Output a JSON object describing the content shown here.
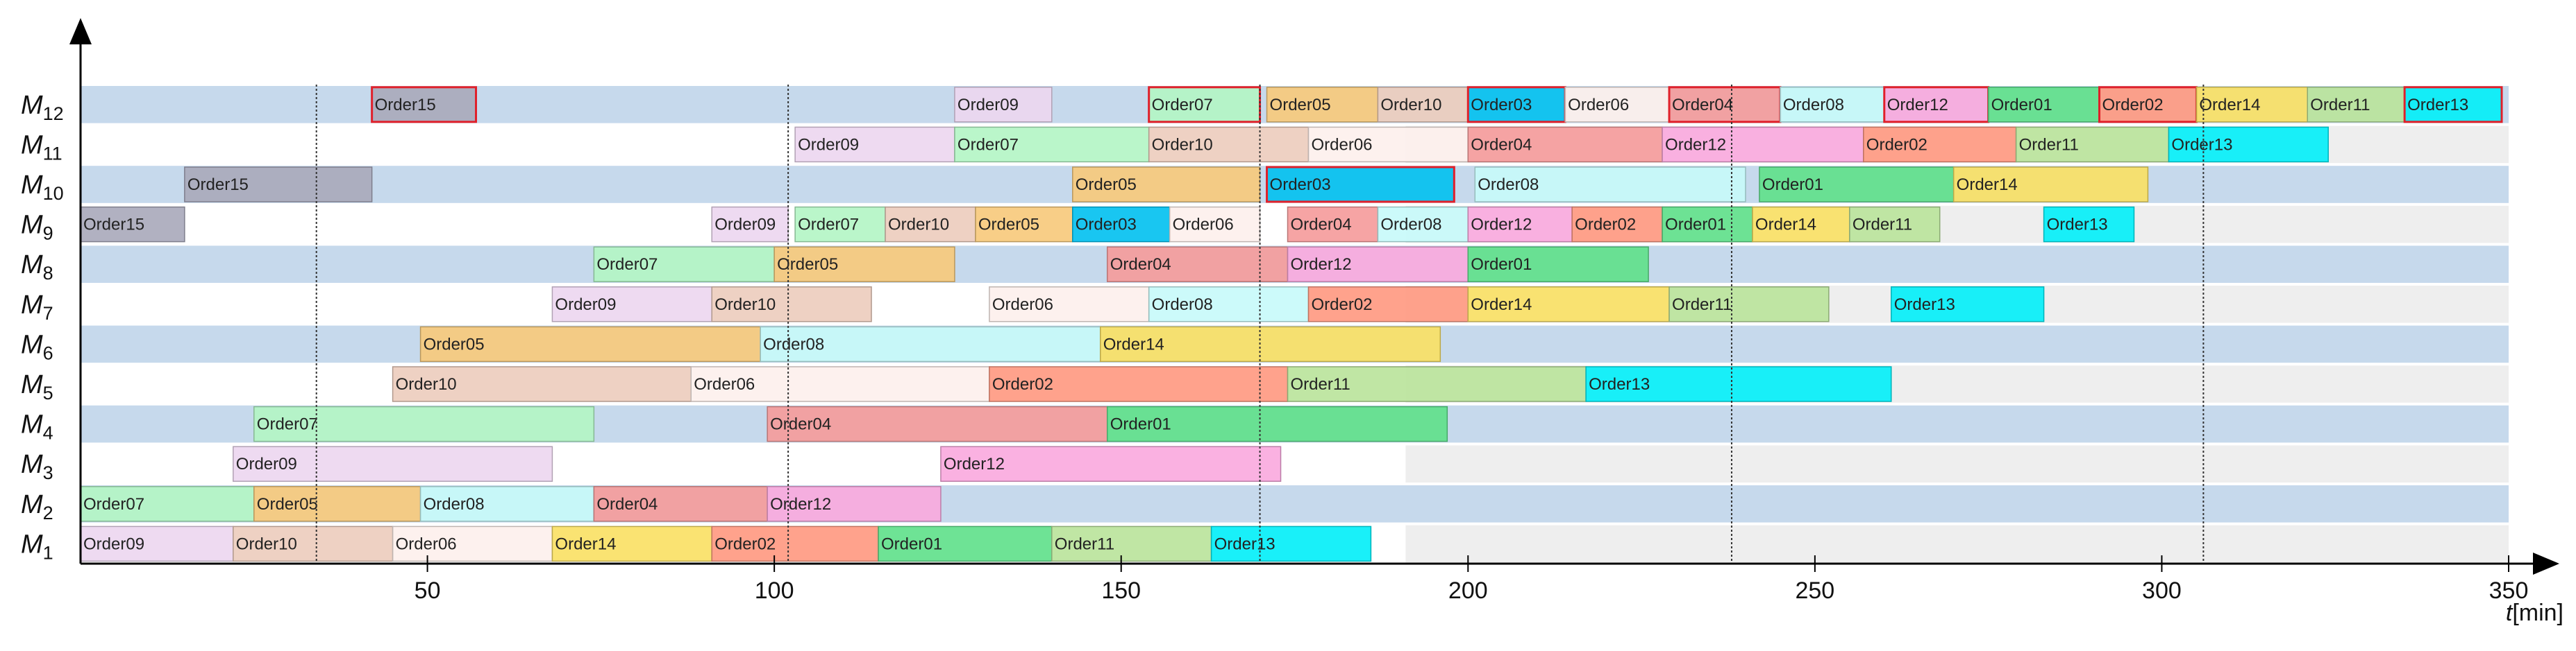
{
  "chart_data": {
    "type": "gantt",
    "x_axis": {
      "label_var": "t",
      "label_unit": "[min]",
      "min": 0,
      "max": 350,
      "ticks": [
        50,
        100,
        150,
        200,
        250,
        300,
        350
      ]
    },
    "machines": [
      {
        "base": "M",
        "sub": "12"
      },
      {
        "base": "M",
        "sub": "11"
      },
      {
        "base": "M",
        "sub": "10"
      },
      {
        "base": "M",
        "sub": "9"
      },
      {
        "base": "M",
        "sub": "8"
      },
      {
        "base": "M",
        "sub": "7"
      },
      {
        "base": "M",
        "sub": "6"
      },
      {
        "base": "M",
        "sub": "5"
      },
      {
        "base": "M",
        "sub": "4"
      },
      {
        "base": "M",
        "sub": "3"
      },
      {
        "base": "M",
        "sub": "2"
      },
      {
        "base": "M",
        "sub": "1"
      }
    ],
    "row_background_end": [
      350,
      350,
      350,
      350,
      350,
      350,
      350,
      350,
      350,
      350,
      350,
      350
    ],
    "gray_after": 191,
    "row_colors": {
      "even": "#c6d9ec",
      "odd": "#ffffff",
      "gray": "#eeeeee"
    },
    "vertical_markers": [
      34,
      102,
      170,
      238,
      306
    ],
    "order_colors": {
      "Order01": "#5ee08a",
      "Order02": "#ff9880",
      "Order03": "#00c0f0",
      "Order04": "#f59a9a",
      "Order05": "#f7c97a",
      "Order06": "#fdf0ec",
      "Order07": "#b2f5c4",
      "Order08": "#c6fafa",
      "Order09": "#ecd6f0",
      "Order10": "#ecccbc",
      "Order11": "#b9e39a",
      "Order12": "#f9a8de",
      "Order13": "#00eef8",
      "Order14": "#f9e063",
      "Order15": "#a8a8ba"
    },
    "operations": [
      {
        "m": 0,
        "order": "Order15",
        "start": 42,
        "end": 57,
        "hl": true
      },
      {
        "m": 0,
        "order": "Order09",
        "start": 126,
        "end": 140
      },
      {
        "m": 0,
        "order": "Order07",
        "start": 154,
        "end": 170,
        "hl": true
      },
      {
        "m": 0,
        "order": "Order05",
        "start": 171,
        "end": 187
      },
      {
        "m": 0,
        "order": "Order10",
        "start": 187,
        "end": 200
      },
      {
        "m": 0,
        "order": "Order03",
        "start": 200,
        "end": 214,
        "hl": true
      },
      {
        "m": 0,
        "order": "Order06",
        "start": 214,
        "end": 229
      },
      {
        "m": 0,
        "order": "Order04",
        "start": 229,
        "end": 245,
        "hl": true
      },
      {
        "m": 0,
        "order": "Order08",
        "start": 245,
        "end": 260
      },
      {
        "m": 0,
        "order": "Order12",
        "start": 260,
        "end": 275,
        "hl": true
      },
      {
        "m": 0,
        "order": "Order01",
        "start": 275,
        "end": 291
      },
      {
        "m": 0,
        "order": "Order02",
        "start": 291,
        "end": 305,
        "hl": true
      },
      {
        "m": 0,
        "order": "Order14",
        "start": 305,
        "end": 321
      },
      {
        "m": 0,
        "order": "Order11",
        "start": 321,
        "end": 335
      },
      {
        "m": 0,
        "order": "Order13",
        "start": 335,
        "end": 349,
        "hl": true
      },
      {
        "m": 1,
        "order": "Order09",
        "start": 103,
        "end": 126
      },
      {
        "m": 1,
        "order": "Order07",
        "start": 126,
        "end": 154
      },
      {
        "m": 1,
        "order": "Order10",
        "start": 154,
        "end": 177
      },
      {
        "m": 1,
        "order": "Order06",
        "start": 177,
        "end": 200
      },
      {
        "m": 1,
        "order": "Order04",
        "start": 200,
        "end": 228
      },
      {
        "m": 1,
        "order": "Order12",
        "start": 228,
        "end": 257
      },
      {
        "m": 1,
        "order": "Order02",
        "start": 257,
        "end": 279
      },
      {
        "m": 1,
        "order": "Order11",
        "start": 279,
        "end": 301
      },
      {
        "m": 1,
        "order": "Order13",
        "start": 301,
        "end": 324
      },
      {
        "m": 2,
        "order": "Order15",
        "start": 15,
        "end": 42
      },
      {
        "m": 2,
        "order": "Order05",
        "start": 143,
        "end": 170
      },
      {
        "m": 2,
        "order": "Order03",
        "start": 171,
        "end": 198,
        "hl": true
      },
      {
        "m": 2,
        "order": "Order08",
        "start": 201,
        "end": 240
      },
      {
        "m": 2,
        "order": "Order01",
        "start": 242,
        "end": 270
      },
      {
        "m": 2,
        "order": "Order14",
        "start": 270,
        "end": 298
      },
      {
        "m": 3,
        "order": "Order15",
        "start": 0,
        "end": 15
      },
      {
        "m": 3,
        "order": "Order09",
        "start": 91,
        "end": 102
      },
      {
        "m": 3,
        "order": "Order07",
        "start": 103,
        "end": 116
      },
      {
        "m": 3,
        "order": "Order10",
        "start": 116,
        "end": 129
      },
      {
        "m": 3,
        "order": "Order05",
        "start": 129,
        "end": 143
      },
      {
        "m": 3,
        "order": "Order03",
        "start": 143,
        "end": 157
      },
      {
        "m": 3,
        "order": "Order06",
        "start": 157,
        "end": 170
      },
      {
        "m": 3,
        "order": "Order04",
        "start": 174,
        "end": 187
      },
      {
        "m": 3,
        "order": "Order08",
        "start": 187,
        "end": 200
      },
      {
        "m": 3,
        "order": "Order12",
        "start": 200,
        "end": 215
      },
      {
        "m": 3,
        "order": "Order02",
        "start": 215,
        "end": 228
      },
      {
        "m": 3,
        "order": "Order01",
        "start": 228,
        "end": 241
      },
      {
        "m": 3,
        "order": "Order14",
        "start": 241,
        "end": 255
      },
      {
        "m": 3,
        "order": "Order11",
        "start": 255,
        "end": 268
      },
      {
        "m": 3,
        "order": "Order13",
        "start": 283,
        "end": 296
      },
      {
        "m": 4,
        "order": "Order07",
        "start": 74,
        "end": 100
      },
      {
        "m": 4,
        "order": "Order05",
        "start": 100,
        "end": 126
      },
      {
        "m": 4,
        "order": "Order04",
        "start": 148,
        "end": 174
      },
      {
        "m": 4,
        "order": "Order12",
        "start": 174,
        "end": 200
      },
      {
        "m": 4,
        "order": "Order01",
        "start": 200,
        "end": 226
      },
      {
        "m": 5,
        "order": "Order09",
        "start": 68,
        "end": 91
      },
      {
        "m": 5,
        "order": "Order10",
        "start": 91,
        "end": 114
      },
      {
        "m": 5,
        "order": "Order06",
        "start": 131,
        "end": 154
      },
      {
        "m": 5,
        "order": "Order08",
        "start": 154,
        "end": 177
      },
      {
        "m": 5,
        "order": "Order02",
        "start": 177,
        "end": 200
      },
      {
        "m": 5,
        "order": "Order14",
        "start": 200,
        "end": 229
      },
      {
        "m": 5,
        "order": "Order11",
        "start": 229,
        "end": 252
      },
      {
        "m": 5,
        "order": "Order13",
        "start": 261,
        "end": 283
      },
      {
        "m": 6,
        "order": "Order05",
        "start": 49,
        "end": 98
      },
      {
        "m": 6,
        "order": "Order08",
        "start": 98,
        "end": 147
      },
      {
        "m": 6,
        "order": "Order14",
        "start": 147,
        "end": 196
      },
      {
        "m": 7,
        "order": "Order10",
        "start": 45,
        "end": 88
      },
      {
        "m": 7,
        "order": "Order06",
        "start": 88,
        "end": 131
      },
      {
        "m": 7,
        "order": "Order02",
        "start": 131,
        "end": 174
      },
      {
        "m": 7,
        "order": "Order11",
        "start": 174,
        "end": 217
      },
      {
        "m": 7,
        "order": "Order13",
        "start": 217,
        "end": 261
      },
      {
        "m": 8,
        "order": "Order07",
        "start": 25,
        "end": 74
      },
      {
        "m": 8,
        "order": "Order04",
        "start": 99,
        "end": 148
      },
      {
        "m": 8,
        "order": "Order01",
        "start": 148,
        "end": 197
      },
      {
        "m": 9,
        "order": "Order09",
        "start": 22,
        "end": 68
      },
      {
        "m": 9,
        "order": "Order12",
        "start": 124,
        "end": 173
      },
      {
        "m": 10,
        "order": "Order07",
        "start": 0,
        "end": 25
      },
      {
        "m": 10,
        "order": "Order05",
        "start": 25,
        "end": 49
      },
      {
        "m": 10,
        "order": "Order08",
        "start": 49,
        "end": 74
      },
      {
        "m": 10,
        "order": "Order04",
        "start": 74,
        "end": 99
      },
      {
        "m": 10,
        "order": "Order12",
        "start": 99,
        "end": 124
      },
      {
        "m": 11,
        "order": "Order09",
        "start": 0,
        "end": 22
      },
      {
        "m": 11,
        "order": "Order10",
        "start": 22,
        "end": 45
      },
      {
        "m": 11,
        "order": "Order06",
        "start": 45,
        "end": 68
      },
      {
        "m": 11,
        "order": "Order14",
        "start": 68,
        "end": 91
      },
      {
        "m": 11,
        "order": "Order02",
        "start": 91,
        "end": 115
      },
      {
        "m": 11,
        "order": "Order01",
        "start": 115,
        "end": 140
      },
      {
        "m": 11,
        "order": "Order11",
        "start": 140,
        "end": 163
      },
      {
        "m": 11,
        "order": "Order13",
        "start": 163,
        "end": 186
      }
    ]
  }
}
